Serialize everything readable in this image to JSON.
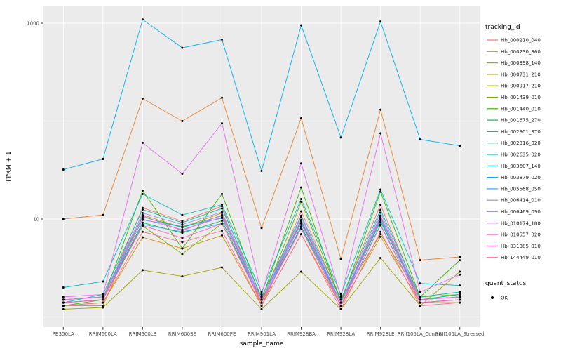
{
  "figure": {
    "background": "#FFFFFF",
    "panel_background": "#EBEBEB",
    "gridline_color": "#FFFFFF",
    "point_color": "#000000"
  },
  "legend": {
    "tracking_title": "tracking_id",
    "quant_title": "quant_status",
    "quant_status_label": "OK"
  },
  "chart_data": {
    "type": "line",
    "title": "",
    "xlabel": "sample_name",
    "ylabel": "FPKM + 1",
    "y_scale": "log10",
    "ylim": [
      0.8,
      1500
    ],
    "grid": true,
    "legend_position": "right",
    "y_ticks": [
      {
        "value": 1000,
        "label": "1000"
      },
      {
        "value": 10,
        "label": "10"
      }
    ],
    "grid_major": [
      10,
      1000
    ],
    "grid_minor": [
      1,
      100
    ],
    "categories": [
      "PB350LA",
      "RRIM600LA",
      "RRIM600LE",
      "RRIM600SE",
      "RRIM600PE",
      "RRIM901LA",
      "RRIM928BA",
      "RRIM928LA",
      "RRIM928LE",
      "RRII105LA_Control",
      "RRII105LA_Stressed"
    ],
    "series": [
      {
        "name": "Hb_000210_040",
        "color": "#F8766D",
        "values": [
          1.4,
          1.5,
          13,
          9.5,
          13.5,
          1.4,
          12,
          1.5,
          14,
          1.5,
          1.6
        ]
      },
      {
        "name": "Hb_000230_360",
        "color": "#EA8331",
        "values": [
          10,
          11,
          170,
          100,
          173,
          8.1,
          107,
          3.9,
          131,
          3.8,
          4.1
        ]
      },
      {
        "name": "Hb_000398_140",
        "color": "#D89000",
        "values": [
          1.3,
          1.4,
          6.5,
          5,
          6.8,
          1.3,
          7,
          1.3,
          6.6,
          1.4,
          1.5
        ]
      },
      {
        "name": "Hb_000731_210",
        "color": "#C09B00",
        "values": [
          1.3,
          1.3,
          11,
          8.2,
          11.5,
          1.3,
          9.5,
          1.3,
          10.8,
          1.4,
          1.4
        ]
      },
      {
        "name": "Hb_000917_210",
        "color": "#A3A500",
        "values": [
          1.2,
          1.25,
          3,
          2.6,
          3.2,
          1.2,
          2.9,
          1.2,
          4,
          1.3,
          2.9
        ]
      },
      {
        "name": "Hb_001439_010",
        "color": "#7CAE00",
        "values": [
          1.4,
          1.5,
          8.5,
          4.4,
          9,
          1.4,
          15,
          1.5,
          7,
          1.6,
          1.7
        ]
      },
      {
        "name": "Hb_001440_010",
        "color": "#39B600",
        "values": [
          1.3,
          1.5,
          19.5,
          5,
          18,
          1.5,
          21,
          1.4,
          19,
          1.6,
          3.8
        ]
      },
      {
        "name": "Hb_001675_270",
        "color": "#00BB4E",
        "values": [
          1.4,
          1.5,
          9.2,
          7.2,
          9.6,
          1.4,
          8.4,
          1.4,
          9.4,
          1.5,
          1.6
        ]
      },
      {
        "name": "Hb_002301_370",
        "color": "#00BF7D",
        "values": [
          1.5,
          1.6,
          10.5,
          8.2,
          10.8,
          1.5,
          9.6,
          1.4,
          10.6,
          1.5,
          1.7
        ]
      },
      {
        "name": "Hb_002316_020",
        "color": "#00C1A3",
        "values": [
          1.4,
          1.7,
          12.5,
          9.2,
          12.8,
          1.6,
          10.8,
          1.5,
          12.4,
          1.6,
          1.8
        ]
      },
      {
        "name": "Hb_002635_020",
        "color": "#00BFC4",
        "values": [
          2,
          2.3,
          18,
          11,
          14,
          1.8,
          16,
          1.7,
          20,
          2.2,
          2.1
        ]
      },
      {
        "name": "Hb_003607_140",
        "color": "#00BAE0",
        "values": [
          1.5,
          1.6,
          9.8,
          8.4,
          10.2,
          1.5,
          9,
          1.4,
          9.8,
          1.5,
          1.6
        ]
      },
      {
        "name": "Hb_003879_020",
        "color": "#00B0F6",
        "values": [
          32,
          41,
          1090,
          560,
          680,
          31,
          950,
          68,
          1040,
          65,
          56
        ]
      },
      {
        "name": "Hb_005568_050",
        "color": "#35A2FF",
        "values": [
          1.4,
          1.5,
          8.8,
          7.4,
          9,
          1.4,
          8.2,
          1.3,
          8.8,
          1.4,
          1.5
        ]
      },
      {
        "name": "Hb_006414_010",
        "color": "#9590FF",
        "values": [
          1.5,
          1.6,
          11.5,
          8.8,
          11.8,
          1.5,
          10.4,
          1.4,
          11.6,
          1.5,
          1.6
        ]
      },
      {
        "name": "Hb_006469_090",
        "color": "#C77CFF",
        "values": [
          1.4,
          1.5,
          10,
          7.8,
          10.4,
          1.4,
          9.2,
          1.3,
          10.2,
          1.4,
          1.5
        ]
      },
      {
        "name": "Hb_010174_180",
        "color": "#E76BF3",
        "values": [
          1.6,
          1.7,
          60,
          29,
          95,
          1.7,
          37,
          1.6,
          75,
          1.8,
          2.7
        ]
      },
      {
        "name": "Hb_010557_020",
        "color": "#FA62DB",
        "values": [
          1.5,
          1.6,
          10.8,
          7.6,
          11,
          1.5,
          9.8,
          1.4,
          10.8,
          1.5,
          1.6
        ]
      },
      {
        "name": "Hb_031385_010",
        "color": "#FF62BC",
        "values": [
          1.4,
          1.5,
          8.6,
          6.4,
          9,
          1.4,
          8,
          1.3,
          8.6,
          1.4,
          1.5
        ]
      },
      {
        "name": "Hb_144449_010",
        "color": "#FF6A98",
        "values": [
          1.3,
          1.4,
          7.4,
          5.8,
          7.6,
          1.3,
          7,
          1.2,
          7.4,
          1.3,
          1.4
        ]
      }
    ]
  }
}
